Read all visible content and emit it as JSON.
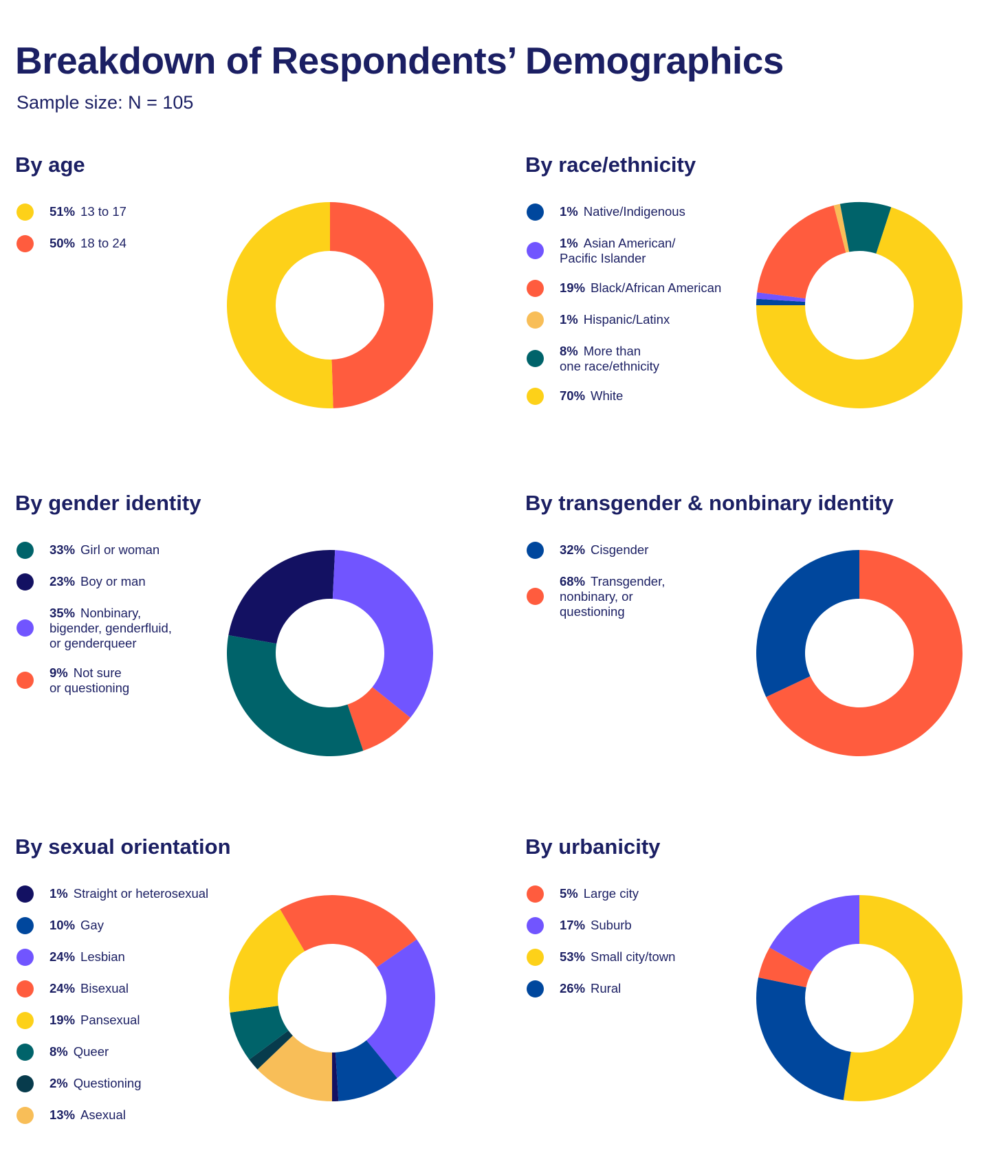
{
  "title": "Breakdown of Respondents’ Demographics",
  "subtitle": "Sample size: N = 105",
  "chart_data": [
    {
      "type": "pie",
      "title": "By age",
      "slices": [
        {
          "pct_label": "51%",
          "label": "13 to 17",
          "value": 51,
          "color": "#FDD119"
        },
        {
          "pct_label": "50%",
          "label": "18 to 24",
          "value": 50,
          "color": "#FF5C3E"
        }
      ]
    },
    {
      "type": "pie",
      "title": "By race/ethnicity",
      "slices": [
        {
          "pct_label": "1%",
          "label": "Native/Indigenous",
          "value": 1,
          "color": "#00479D"
        },
        {
          "pct_label": "1%",
          "label": "Asian American/\nPacific Islander",
          "value": 1,
          "color": "#7155FF"
        },
        {
          "pct_label": "19%",
          "label": "Black/African American",
          "value": 19,
          "color": "#FF5C3E"
        },
        {
          "pct_label": "1%",
          "label": "Hispanic/Latinx",
          "value": 1,
          "color": "#F8BE58"
        },
        {
          "pct_label": "8%",
          "label": "More than\none race/ethnicity",
          "value": 8,
          "color": "#00636A"
        },
        {
          "pct_label": "70%",
          "label": "White",
          "value": 70,
          "color": "#FDD119"
        }
      ]
    },
    {
      "type": "pie",
      "title": "By gender identity",
      "slices": [
        {
          "pct_label": "33%",
          "label": "Girl or woman",
          "value": 33,
          "color": "#00636A"
        },
        {
          "pct_label": "23%",
          "label": "Boy or man",
          "value": 23,
          "color": "#131162"
        },
        {
          "pct_label": "35%",
          "label": "Nonbinary,\nbigender, genderfluid,\nor genderqueer",
          "value": 35,
          "color": "#7155FF"
        },
        {
          "pct_label": "9%",
          "label": "Not sure\nor questioning",
          "value": 9,
          "color": "#FF5C3E"
        }
      ]
    },
    {
      "type": "pie",
      "title": "By transgender & nonbinary identity",
      "slices": [
        {
          "pct_label": "32%",
          "label": "Cisgender",
          "value": 32,
          "color": "#00479D"
        },
        {
          "pct_label": "68%",
          "label": "Transgender,\nnonbinary, or\nquestioning",
          "value": 68,
          "color": "#FF5C3E"
        }
      ]
    },
    {
      "type": "pie",
      "title": "By sexual orientation",
      "slices": [
        {
          "pct_label": "1%",
          "label": "Straight or heterosexual",
          "value": 1,
          "color": "#131162"
        },
        {
          "pct_label": "10%",
          "label": "Gay",
          "value": 10,
          "color": "#00479D"
        },
        {
          "pct_label": "24%",
          "label": "Lesbian",
          "value": 24,
          "color": "#7155FF"
        },
        {
          "pct_label": "24%",
          "label": "Bisexual",
          "value": 24,
          "color": "#FF5C3E"
        },
        {
          "pct_label": "19%",
          "label": "Pansexual",
          "value": 19,
          "color": "#FDD119"
        },
        {
          "pct_label": "8%",
          "label": "Queer",
          "value": 8,
          "color": "#00636A"
        },
        {
          "pct_label": "2%",
          "label": "Questioning",
          "value": 2,
          "color": "#073B4C"
        },
        {
          "pct_label": "13%",
          "label": "Asexual",
          "value": 13,
          "color": "#F8BE58"
        }
      ]
    },
    {
      "type": "pie",
      "title": "By urbanicity",
      "slices": [
        {
          "pct_label": "5%",
          "label": "Large city",
          "value": 5,
          "color": "#FF5C3E"
        },
        {
          "pct_label": "17%",
          "label": "Suburb",
          "value": 17,
          "color": "#7155FF"
        },
        {
          "pct_label": "53%",
          "label": "Small city/town",
          "value": 53,
          "color": "#FDD119"
        },
        {
          "pct_label": "26%",
          "label": "Rural",
          "value": 26,
          "color": "#00479D"
        }
      ]
    }
  ]
}
